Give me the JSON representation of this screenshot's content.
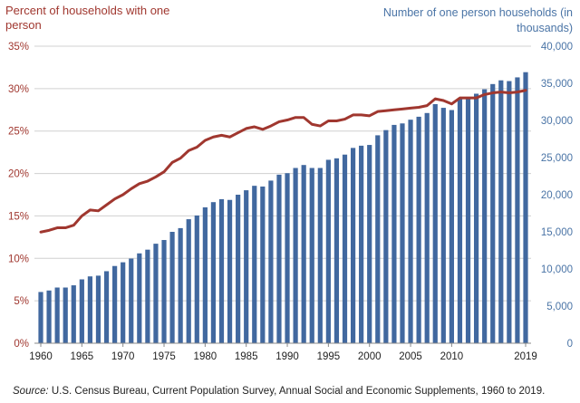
{
  "left_axis_title": "Percent of households with one person",
  "right_axis_title": "Number of one person households (in thousands)",
  "source": {
    "label": "Source:",
    "text": "U.S. Census Bureau, Current Population Survey, Annual Social and Economic Supplements, 1960 to 2019."
  },
  "colors": {
    "bars": "#41689f",
    "line": "#a0372f",
    "left_axis_text": "#a0372f",
    "right_axis_text": "#4a74a6",
    "grid": "#d0d0d0"
  },
  "chart_data": {
    "type": "bar+line",
    "x_tick_labels": [
      "1960",
      "1965",
      "1970",
      "1975",
      "1980",
      "1985",
      "1990",
      "1995",
      "2000",
      "2005",
      "2010",
      "2019"
    ],
    "years": [
      1960,
      1961,
      1962,
      1963,
      1964,
      1965,
      1966,
      1967,
      1968,
      1969,
      1970,
      1971,
      1972,
      1973,
      1974,
      1975,
      1976,
      1977,
      1978,
      1979,
      1980,
      1981,
      1982,
      1983,
      1984,
      1985,
      1986,
      1987,
      1988,
      1989,
      1990,
      1991,
      1992,
      1993,
      1994,
      1995,
      1996,
      1997,
      1998,
      1999,
      2000,
      2001,
      2002,
      2003,
      2004,
      2005,
      2006,
      2007,
      2008,
      2009,
      2010,
      2011,
      2012,
      2013,
      2014,
      2015,
      2016,
      2017,
      2018,
      2019
    ],
    "series": [
      {
        "name": "Number of one person households (in thousands)",
        "kind": "bar",
        "axis": "right",
        "values": [
          6900,
          7100,
          7500,
          7500,
          7800,
          8600,
          9000,
          9100,
          9700,
          10400,
          10900,
          11400,
          12100,
          12600,
          13400,
          13900,
          15000,
          15500,
          16700,
          17200,
          18300,
          19000,
          19400,
          19300,
          20000,
          20600,
          21200,
          21100,
          21900,
          22700,
          22900,
          23600,
          24000,
          23600,
          23600,
          24700,
          24900,
          25400,
          26300,
          26600,
          26700,
          28000,
          28700,
          29400,
          29600,
          30100,
          30500,
          31000,
          32200,
          31700,
          31400,
          32900,
          33000,
          33600,
          34200,
          34900,
          35400,
          35300,
          35800,
          36500
        ]
      },
      {
        "name": "Percent of households with one person",
        "kind": "line",
        "axis": "left",
        "values": [
          13.1,
          13.3,
          13.6,
          13.6,
          13.9,
          15.0,
          15.7,
          15.6,
          16.3,
          17.0,
          17.5,
          18.2,
          18.8,
          19.1,
          19.6,
          20.2,
          21.3,
          21.8,
          22.7,
          23.1,
          23.9,
          24.3,
          24.5,
          24.3,
          24.8,
          25.3,
          25.5,
          25.2,
          25.6,
          26.1,
          26.3,
          26.6,
          26.6,
          25.8,
          25.6,
          26.2,
          26.2,
          26.4,
          26.9,
          26.9,
          26.8,
          27.3,
          27.4,
          27.5,
          27.6,
          27.7,
          27.8,
          28.0,
          28.8,
          28.6,
          28.2,
          28.9,
          28.9,
          28.9,
          29.3,
          29.5,
          29.6,
          29.5,
          29.6,
          29.8
        ]
      }
    ],
    "left_axis": {
      "ticks": [
        "0%",
        "5%",
        "10%",
        "15%",
        "20%",
        "25%",
        "30%",
        "35%"
      ],
      "min": 0,
      "max": 35
    },
    "right_axis": {
      "ticks": [
        "0",
        "5,000",
        "10,000",
        "15,000",
        "20,000",
        "25,000",
        "30,000",
        "35,000",
        "40,000"
      ],
      "min": 0,
      "max": 40000
    },
    "grid": true
  }
}
